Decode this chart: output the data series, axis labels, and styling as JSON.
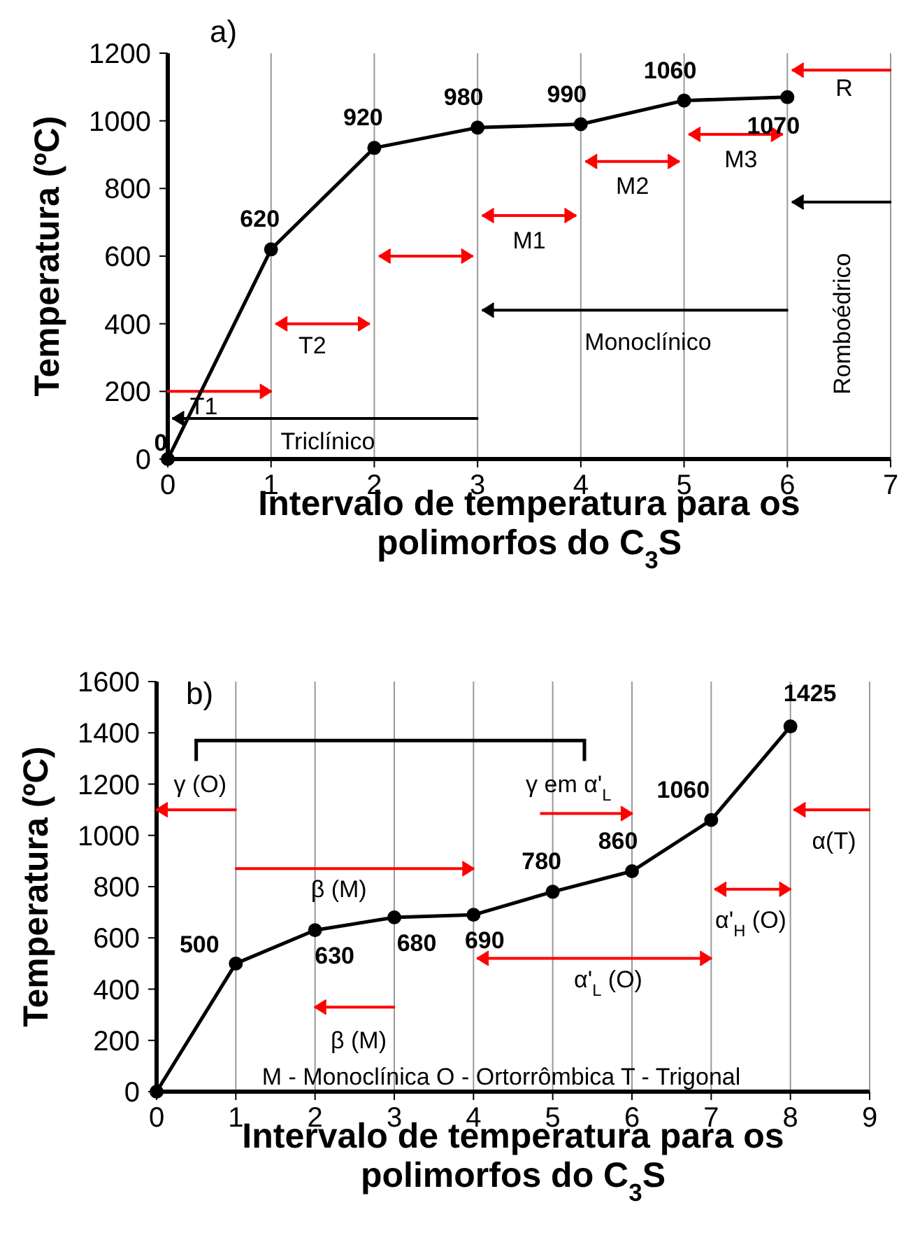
{
  "chart_data": [
    {
      "type": "line",
      "title": "a)",
      "xlabel": "Intervalo de temperatura para os polimorfos do C$_{3}$S",
      "ylabel": "Temperatura (ºC)",
      "x": [
        0,
        1,
        2,
        3,
        4,
        5,
        6
      ],
      "series": [
        {
          "color": "#000000",
          "values": [
            0,
            620,
            920,
            980,
            990,
            1060,
            1070
          ],
          "value_labels": [
            "0",
            "620",
            "920",
            "980",
            "990",
            "1060",
            "1070"
          ]
        }
      ],
      "xlim": [
        0,
        7
      ],
      "xticks": [
        0,
        1,
        2,
        3,
        4,
        5,
        6,
        7
      ],
      "ylim": [
        0,
        1200
      ],
      "yticks": [
        0,
        200,
        400,
        600,
        800,
        1000,
        1200
      ],
      "grid": "x",
      "marker": "circle",
      "annotations": [
        "T1",
        "T2",
        "M1",
        "M2",
        "M3",
        "R",
        "Triclínico",
        "Monoclínico",
        "Romboédrico"
      ]
    },
    {
      "type": "line",
      "title": "b)",
      "xlabel": "Intervalo de temperatura para os polimorfos do C$_{3}$S",
      "ylabel": "Temperatura (ºC)",
      "x": [
        0,
        1,
        2,
        3,
        4,
        5,
        6,
        7,
        8
      ],
      "series": [
        {
          "color": "#000000",
          "values": [
            0,
            500,
            630,
            680,
            690,
            780,
            860,
            1060,
            1425
          ],
          "value_labels": [
            null,
            "500",
            "630",
            "680",
            "690",
            "780",
            "860",
            "1060",
            "1425"
          ]
        }
      ],
      "xlim": [
        0,
        9
      ],
      "xticks": [
        0,
        1,
        2,
        3,
        4,
        5,
        6,
        7,
        8,
        9
      ],
      "ylim": [
        0,
        1600
      ],
      "yticks": [
        0,
        200,
        400,
        600,
        800,
        1000,
        1200,
        1400,
        1600
      ],
      "grid": "x",
      "marker": "circle",
      "annotations": [
        "γ (O)",
        "γ em α'$_{L}$",
        "β (M)",
        "β (M)",
        "α'$_{H}$ (O)",
        "α'$_{L}$ (O)",
        "α(T)",
        "M -  Monoclínica   O - Ortorrômbica  T - Trigonal"
      ]
    }
  ]
}
